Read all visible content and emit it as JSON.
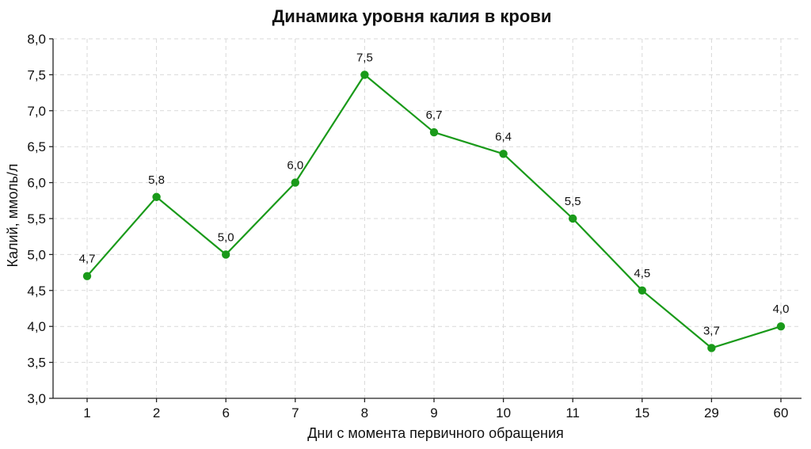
{
  "chart_data": {
    "type": "line",
    "title": "Динамика уровня калия в крови",
    "xlabel": "Дни с момента первичного обращения",
    "ylabel": "Калий, ммоль/л",
    "categories": [
      "1",
      "2",
      "6",
      "7",
      "8",
      "9",
      "10",
      "11",
      "15",
      "29",
      "60"
    ],
    "series": [
      {
        "values": [
          4.7,
          5.8,
          5.0,
          6.0,
          7.5,
          6.7,
          6.4,
          5.5,
          4.5,
          3.7,
          4.0
        ],
        "data_labels": [
          "4,7",
          "5,8",
          "5,0",
          "6,0",
          "7,5",
          "6,7",
          "6,4",
          "5,5",
          "4,5",
          "3,7",
          "4,0"
        ],
        "color": "#1a9a1a"
      }
    ],
    "ylim": [
      3.0,
      8.0
    ],
    "yticks": [
      3.0,
      3.5,
      4.0,
      4.5,
      5.0,
      5.5,
      6.0,
      6.5,
      7.0,
      7.5,
      8.0
    ],
    "ytick_labels": [
      "3,0",
      "3,5",
      "4,0",
      "4,5",
      "5,0",
      "5,5",
      "6,0",
      "6,5",
      "7,0",
      "7,5",
      "8,0"
    ],
    "grid": true,
    "grid_style": "dashed",
    "legend": false
  }
}
